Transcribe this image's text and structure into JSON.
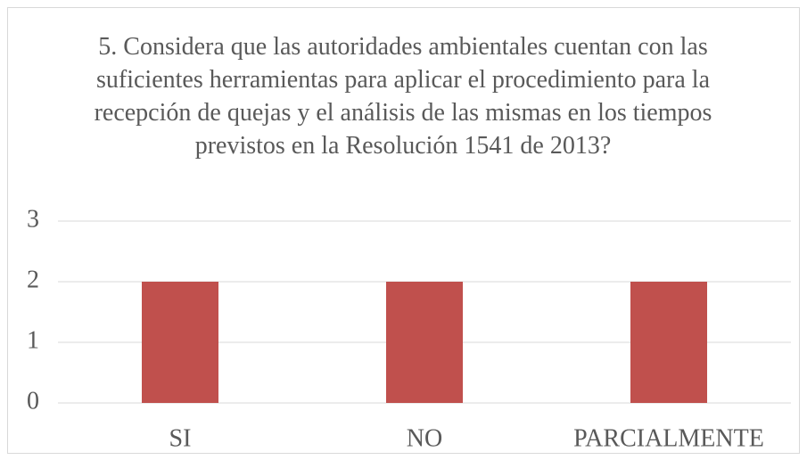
{
  "chart_data": {
    "type": "bar",
    "title": "5. Considera que las autoridades ambientales cuentan con las suficientes herramientas para aplicar el procedimiento para la recepción de quejas y el análisis de las mismas en los tiempos previstos en la Resolución 1541 de 2013?",
    "categories": [
      "SI",
      "NO",
      "PARCIALMENTE"
    ],
    "values": [
      2,
      2,
      2
    ],
    "color": "#c0504d",
    "ylim": [
      0,
      3
    ],
    "yticks": [
      0,
      1,
      2,
      3
    ],
    "grid": true
  }
}
